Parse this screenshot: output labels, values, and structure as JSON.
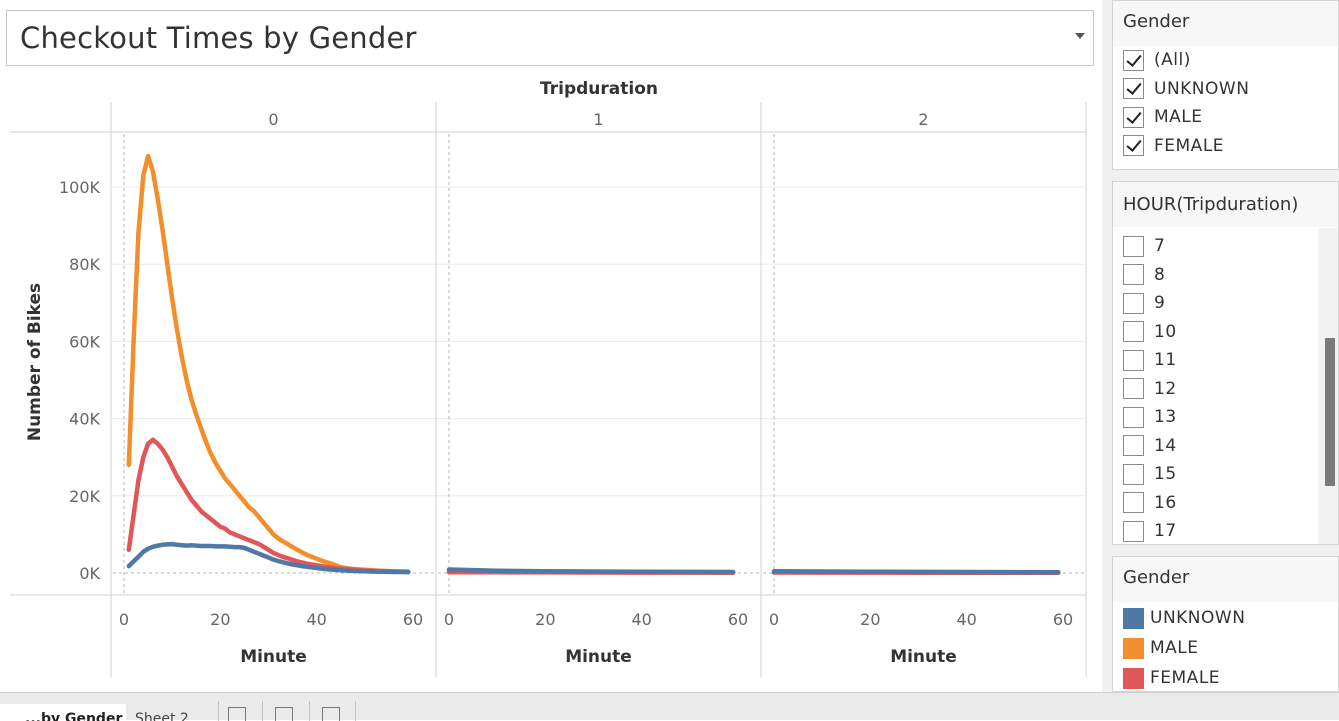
{
  "title": "Checkout Times by Gender",
  "chart_data": {
    "type": "line",
    "column_header": "Tripduration",
    "panels": [
      "0",
      "1",
      "2"
    ],
    "xlabel": "Minute",
    "ylabel": "Number of Bikes",
    "xticks": [
      0,
      20,
      40,
      60
    ],
    "yticks": [
      0,
      20000,
      40000,
      60000,
      80000,
      100000
    ],
    "ytick_labels": [
      "0K",
      "20K",
      "40K",
      "60K",
      "80K",
      "100K"
    ],
    "ylim": [
      0,
      110000
    ],
    "xlim": [
      -3,
      62
    ],
    "grid": true,
    "legend": "right",
    "series": [
      {
        "name": "MALE",
        "color": "#f28e2b",
        "panel_data": [
          {
            "x": [
              1,
              2,
              3,
              4,
              5,
              6,
              7,
              8,
              9,
              10,
              11,
              12,
              13,
              14,
              15,
              16,
              17,
              18,
              19,
              20,
              21,
              22,
              23,
              24,
              25,
              26,
              27,
              28,
              29,
              30,
              31,
              32,
              33,
              34,
              35,
              36,
              37,
              38,
              39,
              40,
              41,
              42,
              43,
              44,
              45,
              46,
              47,
              48,
              49,
              50,
              51,
              52,
              53,
              54,
              55,
              56,
              57,
              58,
              59
            ],
            "y": [
              28000,
              60000,
              88000,
              103000,
              108000,
              104000,
              97000,
              89000,
              80000,
              71000,
              63000,
              56000,
              50000,
              45000,
              41000,
              37500,
              34000,
              31000,
              28500,
              26500,
              24500,
              23000,
              21500,
              20000,
              18500,
              17000,
              16000,
              14500,
              13000,
              11500,
              10000,
              9000,
              8200,
              7500,
              6700,
              6000,
              5300,
              4700,
              4200,
              3700,
              3200,
              2800,
              2400,
              2000,
              1500,
              1300,
              1150,
              1000,
              900,
              820,
              740,
              670,
              600,
              550,
              500,
              460,
              420,
              390,
              360
            ]
          },
          {
            "x": [
              0,
              10,
              20,
              30,
              40,
              50,
              59
            ],
            "y": [
              500,
              420,
              360,
              300,
              260,
              220,
              200
            ]
          },
          {
            "x": [
              0,
              10,
              20,
              30,
              40,
              50,
              59
            ],
            "y": [
              300,
              260,
              220,
              190,
              170,
              150,
              140
            ]
          }
        ]
      },
      {
        "name": "FEMALE",
        "color": "#e15759",
        "panel_data": [
          {
            "x": [
              1,
              2,
              3,
              4,
              5,
              6,
              7,
              8,
              9,
              10,
              11,
              12,
              13,
              14,
              15,
              16,
              17,
              18,
              19,
              20,
              21,
              22,
              23,
              24,
              25,
              26,
              27,
              28,
              29,
              30,
              31,
              32,
              33,
              34,
              35,
              36,
              37,
              38,
              39,
              40,
              41,
              42,
              43,
              44,
              45,
              46,
              47,
              48,
              49,
              50,
              51,
              52,
              53,
              54,
              55,
              56,
              57,
              58,
              59
            ],
            "y": [
              6000,
              15000,
              24000,
              30000,
              33500,
              34500,
              33500,
              32000,
              30000,
              27500,
              25000,
              23000,
              21000,
              19000,
              17500,
              16000,
              15000,
              14000,
              13000,
              12000,
              11500,
              10500,
              10000,
              9500,
              9000,
              8500,
              8000,
              7500,
              6800,
              6000,
              5200,
              4700,
              4200,
              3800,
              3400,
              3000,
              2700,
              2400,
              2200,
              2000,
              1800,
              1600,
              1400,
              1250,
              1100,
              1000,
              900,
              800,
              720,
              650,
              590,
              530,
              480,
              440,
              400,
              370,
              340,
              310,
              290
            ]
          },
          {
            "x": [
              0,
              10,
              20,
              30,
              40,
              50,
              59
            ],
            "y": [
              200,
              180,
              150,
              130,
              110,
              100,
              90
            ]
          },
          {
            "x": [
              0,
              10,
              20,
              30,
              40,
              50,
              59
            ],
            "y": [
              120,
              110,
              100,
              90,
              80,
              70,
              60
            ]
          }
        ]
      },
      {
        "name": "UNKNOWN",
        "color": "#4e79a7",
        "panel_data": [
          {
            "x": [
              1,
              2,
              3,
              4,
              5,
              6,
              7,
              8,
              9,
              10,
              11,
              12,
              13,
              14,
              15,
              16,
              17,
              18,
              19,
              20,
              21,
              22,
              23,
              24,
              25,
              26,
              27,
              28,
              29,
              30,
              31,
              32,
              33,
              34,
              35,
              36,
              37,
              38,
              39,
              40,
              41,
              42,
              43,
              44,
              45,
              46,
              47,
              48,
              49,
              50,
              51,
              52,
              53,
              54,
              55,
              56,
              57,
              58,
              59
            ],
            "y": [
              1800,
              3000,
              4200,
              5500,
              6300,
              6800,
              7100,
              7300,
              7400,
              7500,
              7300,
              7200,
              7100,
              7200,
              7100,
              7000,
              7000,
              7000,
              6900,
              6900,
              6900,
              6800,
              6700,
              6700,
              6500,
              6000,
              5500,
              5000,
              4500,
              4000,
              3500,
              3100,
              2800,
              2500,
              2200,
              2000,
              1800,
              1600,
              1450,
              1300,
              1150,
              1000,
              900,
              800,
              720,
              650,
              580,
              520,
              470,
              430,
              390,
              360,
              330,
              310,
              290,
              270,
              260,
              250,
              240
            ]
          },
          {
            "x": [
              0,
              10,
              20,
              30,
              40,
              50,
              59
            ],
            "y": [
              900,
              600,
              450,
              380,
              320,
              280,
              250
            ]
          },
          {
            "x": [
              0,
              10,
              20,
              30,
              40,
              50,
              59
            ],
            "y": [
              450,
              380,
              330,
              290,
              260,
              240,
              220
            ]
          }
        ]
      }
    ]
  },
  "filter_gender": {
    "title": "Gender",
    "items": [
      {
        "label": "(All)",
        "checked": true
      },
      {
        "label": "UNKNOWN",
        "checked": true
      },
      {
        "label": "MALE",
        "checked": true
      },
      {
        "label": "FEMALE",
        "checked": true
      }
    ]
  },
  "filter_hour": {
    "title": "HOUR(Tripduration)",
    "items": [
      {
        "label": "7",
        "checked": false
      },
      {
        "label": "8",
        "checked": false
      },
      {
        "label": "9",
        "checked": false
      },
      {
        "label": "10",
        "checked": false
      },
      {
        "label": "11",
        "checked": false
      },
      {
        "label": "12",
        "checked": false
      },
      {
        "label": "13",
        "checked": false
      },
      {
        "label": "14",
        "checked": false
      },
      {
        "label": "15",
        "checked": false
      },
      {
        "label": "16",
        "checked": false
      },
      {
        "label": "17",
        "checked": false
      }
    ]
  },
  "legend": {
    "title": "Gender",
    "items": [
      {
        "label": "UNKNOWN",
        "color": "#4e79a7"
      },
      {
        "label": "MALE",
        "color": "#f28e2b"
      },
      {
        "label": "FEMALE",
        "color": "#e15759"
      }
    ]
  },
  "tabs": {
    "active": "...by Gender",
    "second": "Sheet 2"
  }
}
